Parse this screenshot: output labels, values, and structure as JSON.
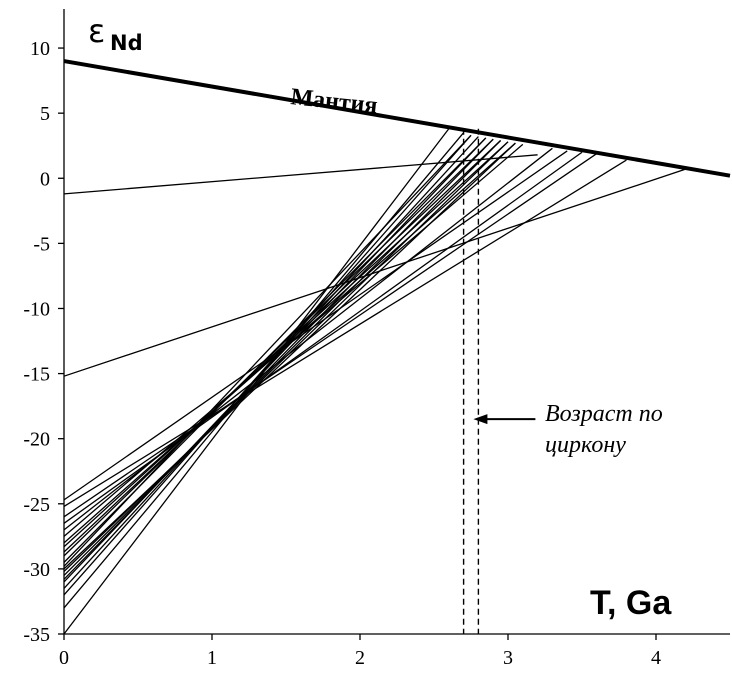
{
  "chart_data": {
    "type": "line",
    "title": "",
    "ylabel_main": "ε",
    "ylabel_sub": "Nd",
    "xlabel": "T, Ga",
    "xlim": [
      0,
      4.5
    ],
    "ylim": [
      -35,
      13
    ],
    "xticks": [
      0,
      1,
      2,
      3,
      4
    ],
    "yticks": [
      10,
      5,
      0,
      -5,
      -10,
      -15,
      -20,
      -25,
      -30,
      -35
    ],
    "grid": false,
    "mantle": {
      "label": "Мантия",
      "from": [
        0,
        9.0
      ],
      "to": [
        4.5,
        0.2
      ]
    },
    "zircon_age_lines": [
      2.7,
      2.8
    ],
    "annotation": {
      "lines": [
        "Возраст по",
        "циркону"
      ],
      "arrow_to_x": 2.8,
      "arrow_y": -18.5
    },
    "series": [
      {
        "from": [
          0,
          -1.2
        ],
        "to": [
          3.2,
          1.8
        ]
      },
      {
        "from": [
          0,
          -15.2
        ],
        "to": [
          4.2,
          0.7
        ]
      },
      {
        "from": [
          0,
          -35.0
        ],
        "to": [
          2.6,
          3.8
        ]
      },
      {
        "from": [
          0,
          -33.0
        ],
        "to": [
          2.7,
          3.5
        ]
      },
      {
        "from": [
          0,
          -32.0
        ],
        "to": [
          2.75,
          3.3
        ]
      },
      {
        "from": [
          0,
          -31.5
        ],
        "to": [
          2.8,
          3.2
        ]
      },
      {
        "from": [
          0,
          -31.0
        ],
        "to": [
          2.85,
          3.1
        ]
      },
      {
        "from": [
          0,
          -30.8
        ],
        "to": [
          2.9,
          3.0
        ]
      },
      {
        "from": [
          0,
          -30.5
        ],
        "to": [
          2.95,
          2.9
        ]
      },
      {
        "from": [
          0,
          -30.2
        ],
        "to": [
          3.0,
          2.8
        ]
      },
      {
        "from": [
          0,
          -30.0
        ],
        "to": [
          3.05,
          2.7
        ]
      },
      {
        "from": [
          0,
          -29.8
        ],
        "to": [
          2.75,
          3.3
        ]
      },
      {
        "from": [
          0,
          -29.5
        ],
        "to": [
          2.85,
          3.1
        ]
      },
      {
        "from": [
          0,
          -29.0
        ],
        "to": [
          2.9,
          3.0
        ]
      },
      {
        "from": [
          0,
          -28.7
        ],
        "to": [
          2.95,
          2.9
        ]
      },
      {
        "from": [
          0,
          -28.3
        ],
        "to": [
          3.0,
          2.8
        ]
      },
      {
        "from": [
          0,
          -28.0
        ],
        "to": [
          3.05,
          2.7
        ]
      },
      {
        "from": [
          0,
          -27.5
        ],
        "to": [
          3.1,
          2.6
        ]
      },
      {
        "from": [
          0,
          -27.0
        ],
        "to": [
          3.3,
          2.3
        ]
      },
      {
        "from": [
          0,
          -26.5
        ],
        "to": [
          3.5,
          2.0
        ]
      },
      {
        "from": [
          0,
          -26.0
        ],
        "to": [
          3.6,
          1.9
        ]
      },
      {
        "from": [
          0,
          -25.2
        ],
        "to": [
          3.8,
          1.4
        ]
      },
      {
        "from": [
          0,
          -24.7
        ],
        "to": [
          3.4,
          2.1
        ]
      }
    ]
  }
}
